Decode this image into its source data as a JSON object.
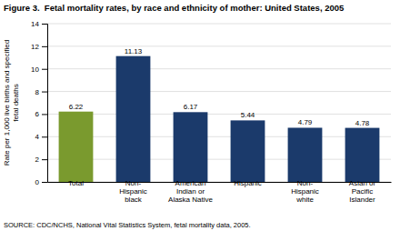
{
  "chart_data": {
    "type": "bar",
    "title": "Figure 3.  Fetal mortality rates, by race and ethnicity of mother: United States, 2005",
    "source": "SOURCE: CDC/NCHS, National Vital Statistics System, fetal mortality data, 2005.",
    "categories": [
      "Total",
      "Non-\nHispanic\nblack",
      "American\nIndian or\nAlaska Native",
      "Hispanic",
      "Non-\nHispanic\nwhite",
      "Asian or\nPacific\nIslander"
    ],
    "values": [
      6.22,
      11.13,
      6.17,
      5.44,
      4.79,
      4.78
    ],
    "colors": [
      "#7a9a2e",
      "#1b3a6b",
      "#1b3a6b",
      "#1b3a6b",
      "#1b3a6b",
      "#1b3a6b"
    ],
    "ylabel": "Rate per 1,000 live births and specified\nfetal deaths",
    "ylim": [
      0,
      14
    ],
    "yticks": [
      0,
      2,
      4,
      6,
      8,
      10,
      12,
      14
    ],
    "grid": true,
    "data_labels": true
  }
}
